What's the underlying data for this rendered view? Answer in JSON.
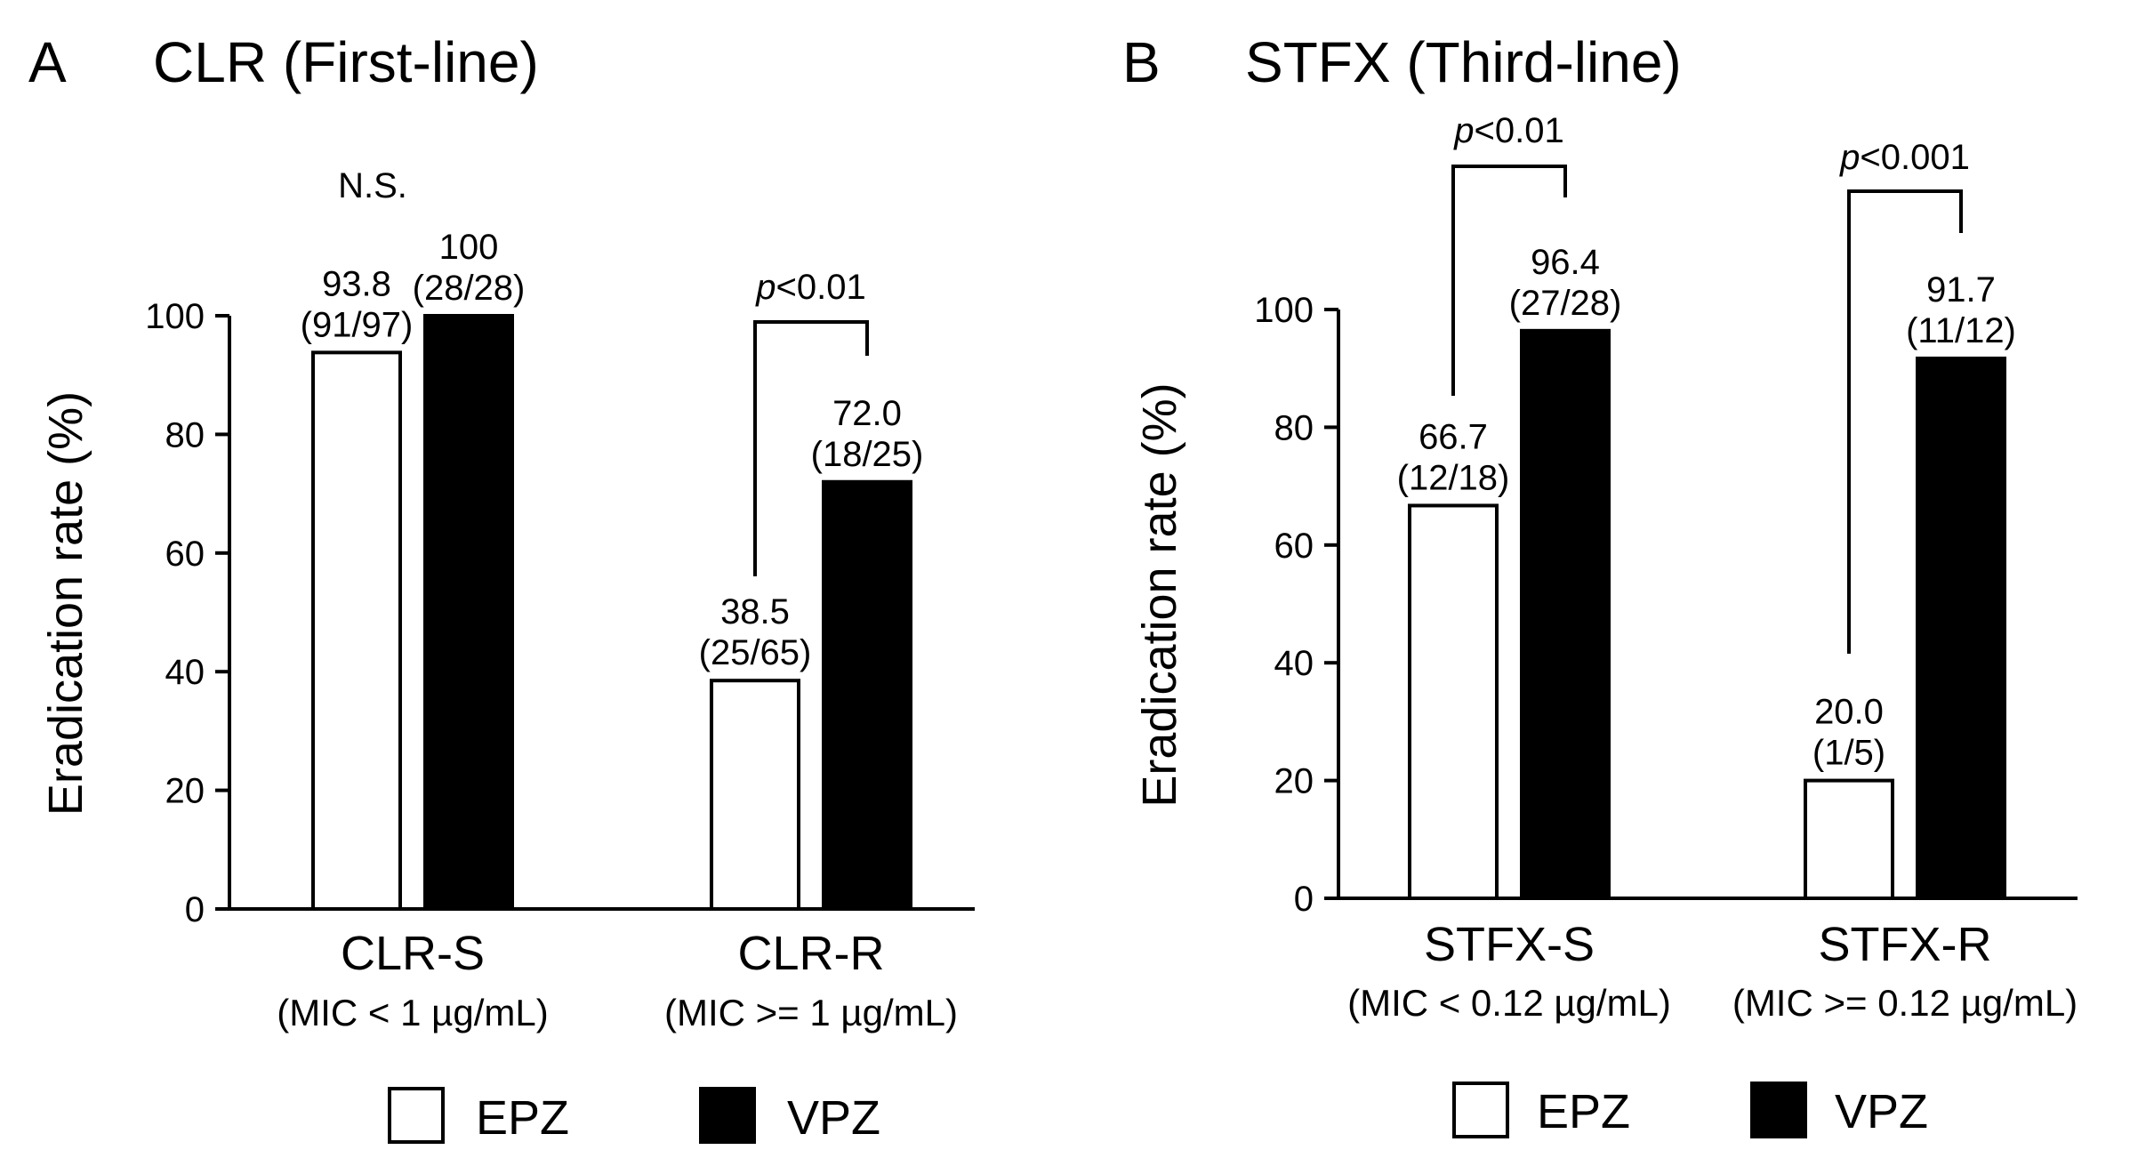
{
  "chart_data": [
    {
      "type": "bar",
      "panel": "A",
      "title": "CLR (First-line)",
      "ylabel": "Eradication rate (%)",
      "xlabel": "",
      "ylim": [
        0,
        100
      ],
      "yticks": [
        "0",
        "20",
        "40",
        "60",
        "80",
        "100"
      ],
      "categories": [
        "CLR-S",
        "CLR-R"
      ],
      "category_sublabels": [
        "(MIC < 1 µg/mL)",
        "(MIC >= 1 µg/mL)"
      ],
      "series": [
        {
          "name": "EPZ",
          "color": "#ffffff",
          "values": [
            93.8,
            38.5
          ],
          "value_labels": [
            "93.8",
            "38.5"
          ],
          "fraction_labels": [
            "(91/97)",
            "(25/65)"
          ]
        },
        {
          "name": "VPZ",
          "color": "#000000",
          "values": [
            100,
            72.0
          ],
          "value_labels": [
            "100",
            "72.0"
          ],
          "fraction_labels": [
            "(28/28)",
            "(18/25)"
          ]
        }
      ],
      "significance": [
        {
          "category": "CLR-S",
          "label": "N.S.",
          "italic_p": false
        },
        {
          "category": "CLR-R",
          "label": "p<0.01",
          "italic_p": true
        }
      ]
    },
    {
      "type": "bar",
      "panel": "B",
      "title": "STFX (Third-line)",
      "ylabel": "Eradication rate (%)",
      "xlabel": "",
      "ylim": [
        0,
        100
      ],
      "yticks": [
        "0",
        "20",
        "40",
        "60",
        "80",
        "100"
      ],
      "categories": [
        "STFX-S",
        "STFX-R"
      ],
      "category_sublabels": [
        "(MIC < 0.12 µg/mL)",
        "(MIC >= 0.12 µg/mL)"
      ],
      "series": [
        {
          "name": "EPZ",
          "color": "#ffffff",
          "values": [
            66.7,
            20.0
          ],
          "value_labels": [
            "66.7",
            "20.0"
          ],
          "fraction_labels": [
            "(12/18)",
            "(1/5)"
          ]
        },
        {
          "name": "VPZ",
          "color": "#000000",
          "values": [
            96.4,
            91.7
          ],
          "value_labels": [
            "96.4",
            "91.7"
          ],
          "fraction_labels": [
            "(27/28)",
            "(11/12)"
          ]
        }
      ],
      "significance": [
        {
          "category": "STFX-S",
          "label": "p<0.01",
          "italic_p": true
        },
        {
          "category": "STFX-R",
          "label": "p<0.001",
          "italic_p": true
        }
      ]
    }
  ],
  "legend": [
    {
      "name": "EPZ",
      "color": "#ffffff"
    },
    {
      "name": "VPZ",
      "color": "#000000"
    }
  ]
}
